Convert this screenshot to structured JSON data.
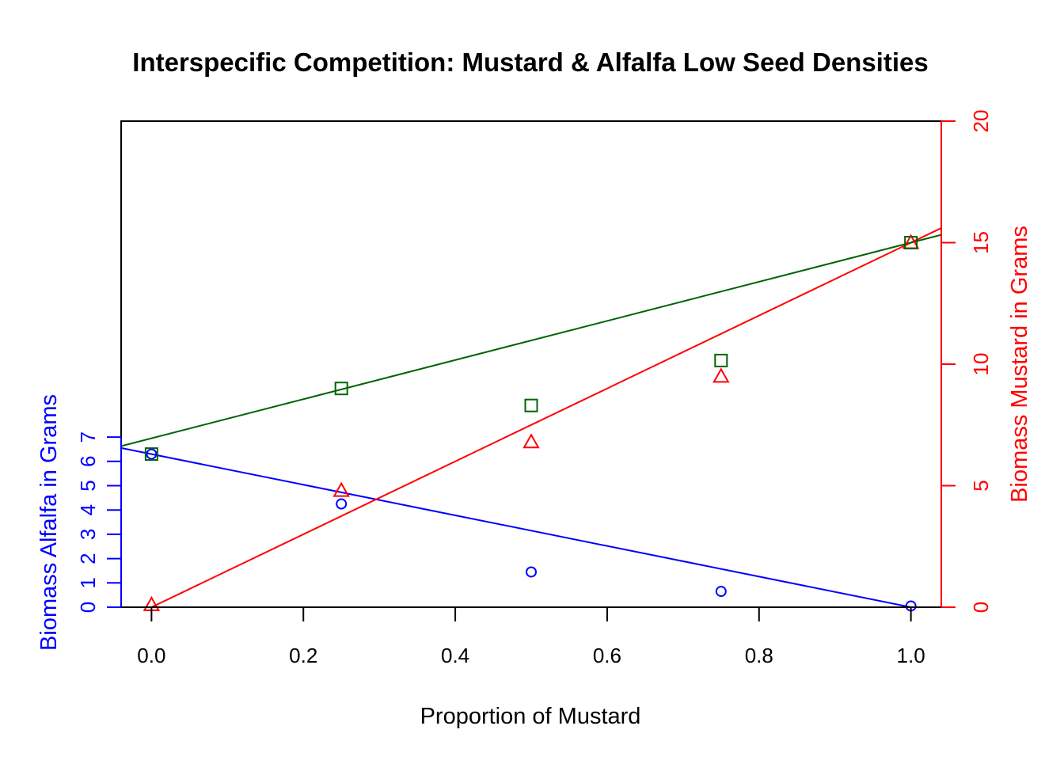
{
  "chart_data": {
    "type": "scatter",
    "title": "Interspecific Competition: Mustard & Alfalfa Low Seed Densities",
    "xlabel": "Proportion of Mustard",
    "ylabel_left": "Biomass Alfalfa in Grams",
    "ylabel_right": "Biomass Mustard in Grams",
    "xlim": [
      -0.04,
      1.04
    ],
    "ylim_left": [
      0,
      20
    ],
    "ylim_right": [
      0,
      20
    ],
    "x_ticks": [
      "0.0",
      "0.2",
      "0.4",
      "0.6",
      "0.8",
      "1.0"
    ],
    "left_ticks": [
      "0",
      "1",
      "2",
      "3",
      "4",
      "5",
      "6",
      "7"
    ],
    "right_ticks": [
      "0",
      "5",
      "10",
      "15",
      "20"
    ],
    "grid": false,
    "colors": {
      "alfalfa": "#0000ff",
      "mustard": "#ff0000",
      "total": "#006400"
    },
    "series": [
      {
        "marker": "circle",
        "axis": "left",
        "color": "#0000ff",
        "x": [
          0,
          0.25,
          0.5,
          0.75,
          1.0
        ],
        "y": [
          6.3,
          4.25,
          1.45,
          0.65,
          0.05
        ],
        "fit": {
          "intercept": 6.3,
          "slope": -6.3
        }
      },
      {
        "marker": "triangle",
        "axis": "right",
        "color": "#ff0000",
        "x": [
          0,
          0.25,
          0.5,
          0.75,
          1.0
        ],
        "y": [
          0.1,
          4.8,
          6.8,
          9.5,
          15.0
        ],
        "fit": {
          "intercept": 0.0,
          "slope": 15.0
        }
      },
      {
        "marker": "square",
        "axis": "left",
        "color": "#006400",
        "x": [
          0,
          0.25,
          0.5,
          0.75,
          1.0
        ],
        "y": [
          6.3,
          9.0,
          8.3,
          10.15,
          15.0
        ],
        "fit": {
          "intercept": 6.95,
          "slope": 8.05
        }
      }
    ]
  }
}
